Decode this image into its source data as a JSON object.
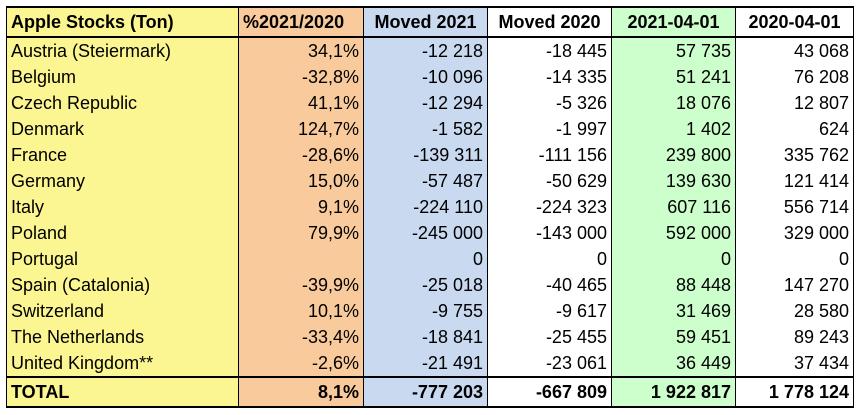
{
  "sheet": {
    "headers": [
      "Apple Stocks (Ton)",
      "%2021/2020",
      "Moved 2021",
      "Moved 2020",
      "2021-04-01",
      "2020-04-01"
    ],
    "rows": [
      [
        "Austria (Steiermark)",
        "34,1%",
        "-12 218",
        "-18 445",
        "57 735",
        "43 068"
      ],
      [
        "Belgium",
        "-32,8%",
        "-10 096",
        "-14 335",
        "51 241",
        "76 208"
      ],
      [
        "Czech Republic",
        "41,1%",
        "-12 294",
        "-5 326",
        "18 076",
        "12 807"
      ],
      [
        "Denmark",
        "124,7%",
        "-1 582",
        "-1 997",
        "1 402",
        "624"
      ],
      [
        "France",
        "-28,6%",
        "-139 311",
        "-111 156",
        "239 800",
        "335 762"
      ],
      [
        "Germany",
        "15,0%",
        "-57 487",
        "-50 629",
        "139 630",
        "121 414"
      ],
      [
        "Italy",
        "9,1%",
        "-224 110",
        "-224 323",
        "607 116",
        "556 714"
      ],
      [
        "Poland",
        "79,9%",
        "-245 000",
        "-143 000",
        "592 000",
        "329 000"
      ],
      [
        "Portugal",
        "",
        "0",
        "0",
        "0",
        "0"
      ],
      [
        "Spain (Catalonia)",
        "-39,9%",
        "-25 018",
        "-40 465",
        "88 448",
        "147 270"
      ],
      [
        "Switzerland",
        "10,1%",
        "-9 755",
        "-9 617",
        "31 469",
        "28 580"
      ],
      [
        "The Netherlands",
        "-33,4%",
        "-18 841",
        "-25 455",
        "59 451",
        "89 243"
      ],
      [
        "United Kingdom**",
        "-2,6%",
        "-21 491",
        "-23 061",
        "36 449",
        "37 434"
      ]
    ],
    "total": [
      "TOTAL",
      "8,1%",
      "-777 203",
      "-667 809",
      "1 922 817",
      "1 778 124"
    ],
    "column_colors": [
      "#fbf691",
      "#f9cb9c",
      "#c9daf0",
      "#ffffff",
      "#ccffcc",
      "#ffffff"
    ]
  }
}
